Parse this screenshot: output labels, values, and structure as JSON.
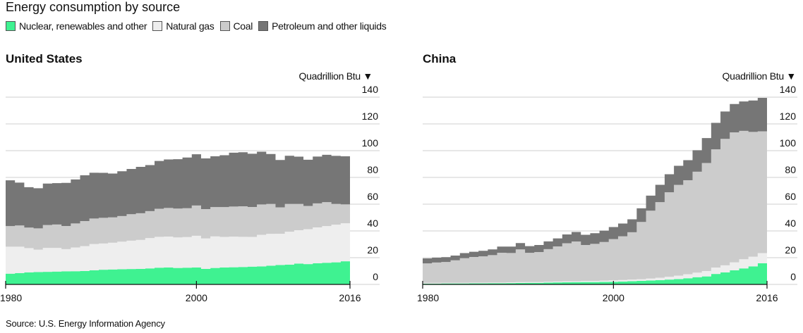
{
  "title": "Energy consumption by source",
  "legend": [
    {
      "label": "Nuclear, renewables and other",
      "color": "#3ff291"
    },
    {
      "label": "Natural gas",
      "color": "#eeeeee"
    },
    {
      "label": "Coal",
      "color": "#cccccc"
    },
    {
      "label": "Petroleum and other liquids",
      "color": "#767676"
    }
  ],
  "source": "Source: U.S. Energy Information Agency",
  "chart_data": [
    {
      "type": "area",
      "title": "United States",
      "ylabel": "Quadrillion Btu ▼",
      "ylim": [
        0,
        140
      ],
      "yticks": [
        "0",
        "20",
        "40",
        "60",
        "80",
        "100",
        "120",
        "140"
      ],
      "xticks": [
        "1980",
        "2000",
        "2016"
      ],
      "x": [
        1980,
        1981,
        1982,
        1983,
        1984,
        1985,
        1986,
        1987,
        1988,
        1989,
        1990,
        1991,
        1992,
        1993,
        1994,
        1995,
        1996,
        1997,
        1998,
        1999,
        2000,
        2001,
        2002,
        2003,
        2004,
        2005,
        2006,
        2007,
        2008,
        2009,
        2010,
        2011,
        2012,
        2013,
        2014,
        2015,
        2016
      ],
      "series": [
        {
          "name": "Nuclear, renewables and other",
          "values": [
            8.0,
            8.5,
            9.0,
            9.2,
            9.4,
            9.6,
            9.8,
            9.9,
            10.0,
            10.5,
            11.0,
            11.2,
            11.3,
            11.5,
            11.6,
            12.0,
            12.5,
            12.6,
            12.3,
            12.5,
            12.6,
            11.6,
            12.3,
            12.6,
            12.8,
            13.0,
            13.3,
            13.4,
            14.0,
            14.5,
            14.8,
            15.6,
            15.2,
            15.8,
            16.2,
            16.5,
            17.3
          ]
        },
        {
          "name": "Natural gas",
          "values": [
            20.2,
            19.7,
            18.2,
            16.8,
            17.9,
            17.7,
            16.6,
            17.7,
            18.6,
            19.7,
            19.6,
            20.0,
            20.7,
            21.2,
            21.7,
            22.7,
            23.1,
            23.2,
            22.8,
            22.9,
            23.8,
            22.8,
            23.6,
            22.9,
            22.9,
            22.6,
            22.2,
            23.7,
            23.8,
            23.4,
            24.6,
            24.9,
            26.1,
            26.8,
            27.4,
            28.2,
            28.4
          ]
        },
        {
          "name": "Coal",
          "values": [
            15.4,
            15.9,
            15.3,
            15.9,
            17.1,
            17.5,
            17.3,
            18.0,
            18.8,
            19.1,
            19.2,
            18.9,
            19.1,
            19.8,
            19.9,
            20.1,
            21.0,
            21.4,
            21.6,
            21.6,
            22.6,
            21.9,
            21.9,
            22.3,
            22.5,
            22.8,
            22.4,
            22.7,
            22.4,
            19.7,
            20.8,
            19.7,
            17.4,
            18.0,
            17.9,
            15.5,
            14.2
          ]
        },
        {
          "name": "Petroleum and other liquids",
          "values": [
            34.2,
            32.0,
            30.2,
            30.0,
            31.0,
            30.9,
            32.2,
            32.9,
            34.2,
            34.2,
            33.6,
            32.8,
            33.5,
            33.8,
            34.7,
            34.4,
            35.7,
            36.2,
            36.9,
            37.9,
            38.3,
            37.9,
            38.0,
            38.8,
            40.3,
            40.4,
            39.8,
            39.4,
            37.3,
            35.4,
            36.0,
            35.3,
            34.5,
            35.0,
            35.4,
            35.9,
            35.9
          ]
        }
      ]
    },
    {
      "type": "area",
      "title": "China",
      "ylabel": "Quadrillion Btu ▼",
      "ylim": [
        0,
        140
      ],
      "yticks": [
        "0",
        "20",
        "40",
        "60",
        "80",
        "100",
        "120",
        "140"
      ],
      "xticks": [
        "1980",
        "2000",
        "2016"
      ],
      "x": [
        1980,
        1981,
        1982,
        1983,
        1984,
        1985,
        1986,
        1987,
        1988,
        1989,
        1990,
        1991,
        1992,
        1993,
        1994,
        1995,
        1996,
        1997,
        1998,
        1999,
        2000,
        2001,
        2002,
        2003,
        2004,
        2005,
        2006,
        2007,
        2008,
        2009,
        2010,
        2011,
        2012,
        2013,
        2014,
        2015,
        2016
      ],
      "series": [
        {
          "name": "Nuclear, renewables and other",
          "values": [
            0.6,
            0.6,
            0.7,
            0.7,
            0.7,
            0.8,
            0.8,
            0.9,
            0.9,
            1.0,
            1.1,
            1.2,
            1.2,
            1.4,
            1.5,
            1.6,
            1.7,
            1.8,
            1.8,
            1.9,
            2.0,
            2.2,
            2.4,
            2.6,
            2.9,
            3.2,
            3.6,
            4.0,
            4.6,
            5.4,
            6.0,
            7.8,
            9.0,
            10.5,
            12.0,
            13.5,
            15.8
          ]
        },
        {
          "name": "Natural gas",
          "values": [
            0.5,
            0.5,
            0.5,
            0.5,
            0.5,
            0.5,
            0.5,
            0.5,
            0.5,
            0.6,
            0.6,
            0.6,
            0.6,
            0.6,
            0.7,
            0.7,
            0.7,
            0.8,
            0.8,
            0.9,
            1.0,
            1.1,
            1.2,
            1.3,
            1.5,
            1.8,
            2.1,
            2.6,
            3.0,
            3.4,
            4.0,
            4.8,
            5.3,
            6.0,
            6.8,
            7.2,
            7.6
          ]
        },
        {
          "name": "Coal",
          "values": [
            14.6,
            15.3,
            15.6,
            16.8,
            18.4,
            19.2,
            19.7,
            20.5,
            22.3,
            21.9,
            24.5,
            21.8,
            22.4,
            24.4,
            26.2,
            28.5,
            29.7,
            26.9,
            27.7,
            28.9,
            30.9,
            32.7,
            35.4,
            42.8,
            50.7,
            56.5,
            63.2,
            67.8,
            70.3,
            75.5,
            80.8,
            88.4,
            94.5,
            97.2,
            96.0,
            93.3,
            91.1
          ]
        },
        {
          "name": "Petroleum and other liquids",
          "values": [
            3.8,
            3.6,
            3.6,
            3.6,
            3.8,
            3.9,
            4.1,
            4.3,
            4.6,
            4.8,
            4.7,
            5.0,
            5.3,
            5.8,
            6.0,
            6.6,
            7.1,
            7.6,
            8.0,
            8.5,
            9.0,
            9.5,
            9.7,
            10.2,
            11.3,
            13.0,
            13.5,
            14.3,
            15.0,
            16.0,
            18.6,
            19.8,
            20.5,
            21.2,
            22.0,
            23.5,
            25.0
          ]
        }
      ]
    }
  ]
}
